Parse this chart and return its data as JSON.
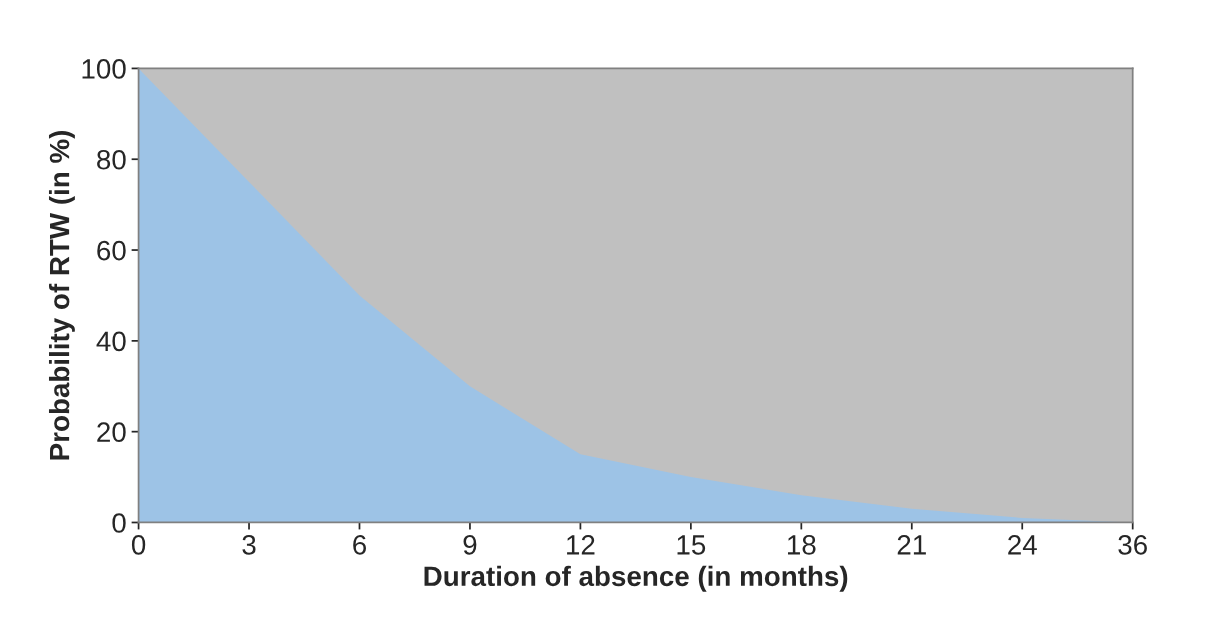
{
  "chart_data": {
    "type": "area",
    "xlabel": "Duration of absence (in months)",
    "ylabel": "Probability of RTW (in %)",
    "categories": [
      "0",
      "3",
      "6",
      "9",
      "12",
      "15",
      "18",
      "21",
      "24",
      "36"
    ],
    "series": [
      {
        "color": "#9dc3e6",
        "values": [
          100,
          75,
          50,
          30,
          15,
          10,
          6,
          3,
          1,
          0
        ]
      }
    ],
    "ylim": [
      0,
      100
    ],
    "yticks": [
      0,
      20,
      40,
      60,
      80,
      100
    ],
    "grid": false,
    "legend": false
  }
}
